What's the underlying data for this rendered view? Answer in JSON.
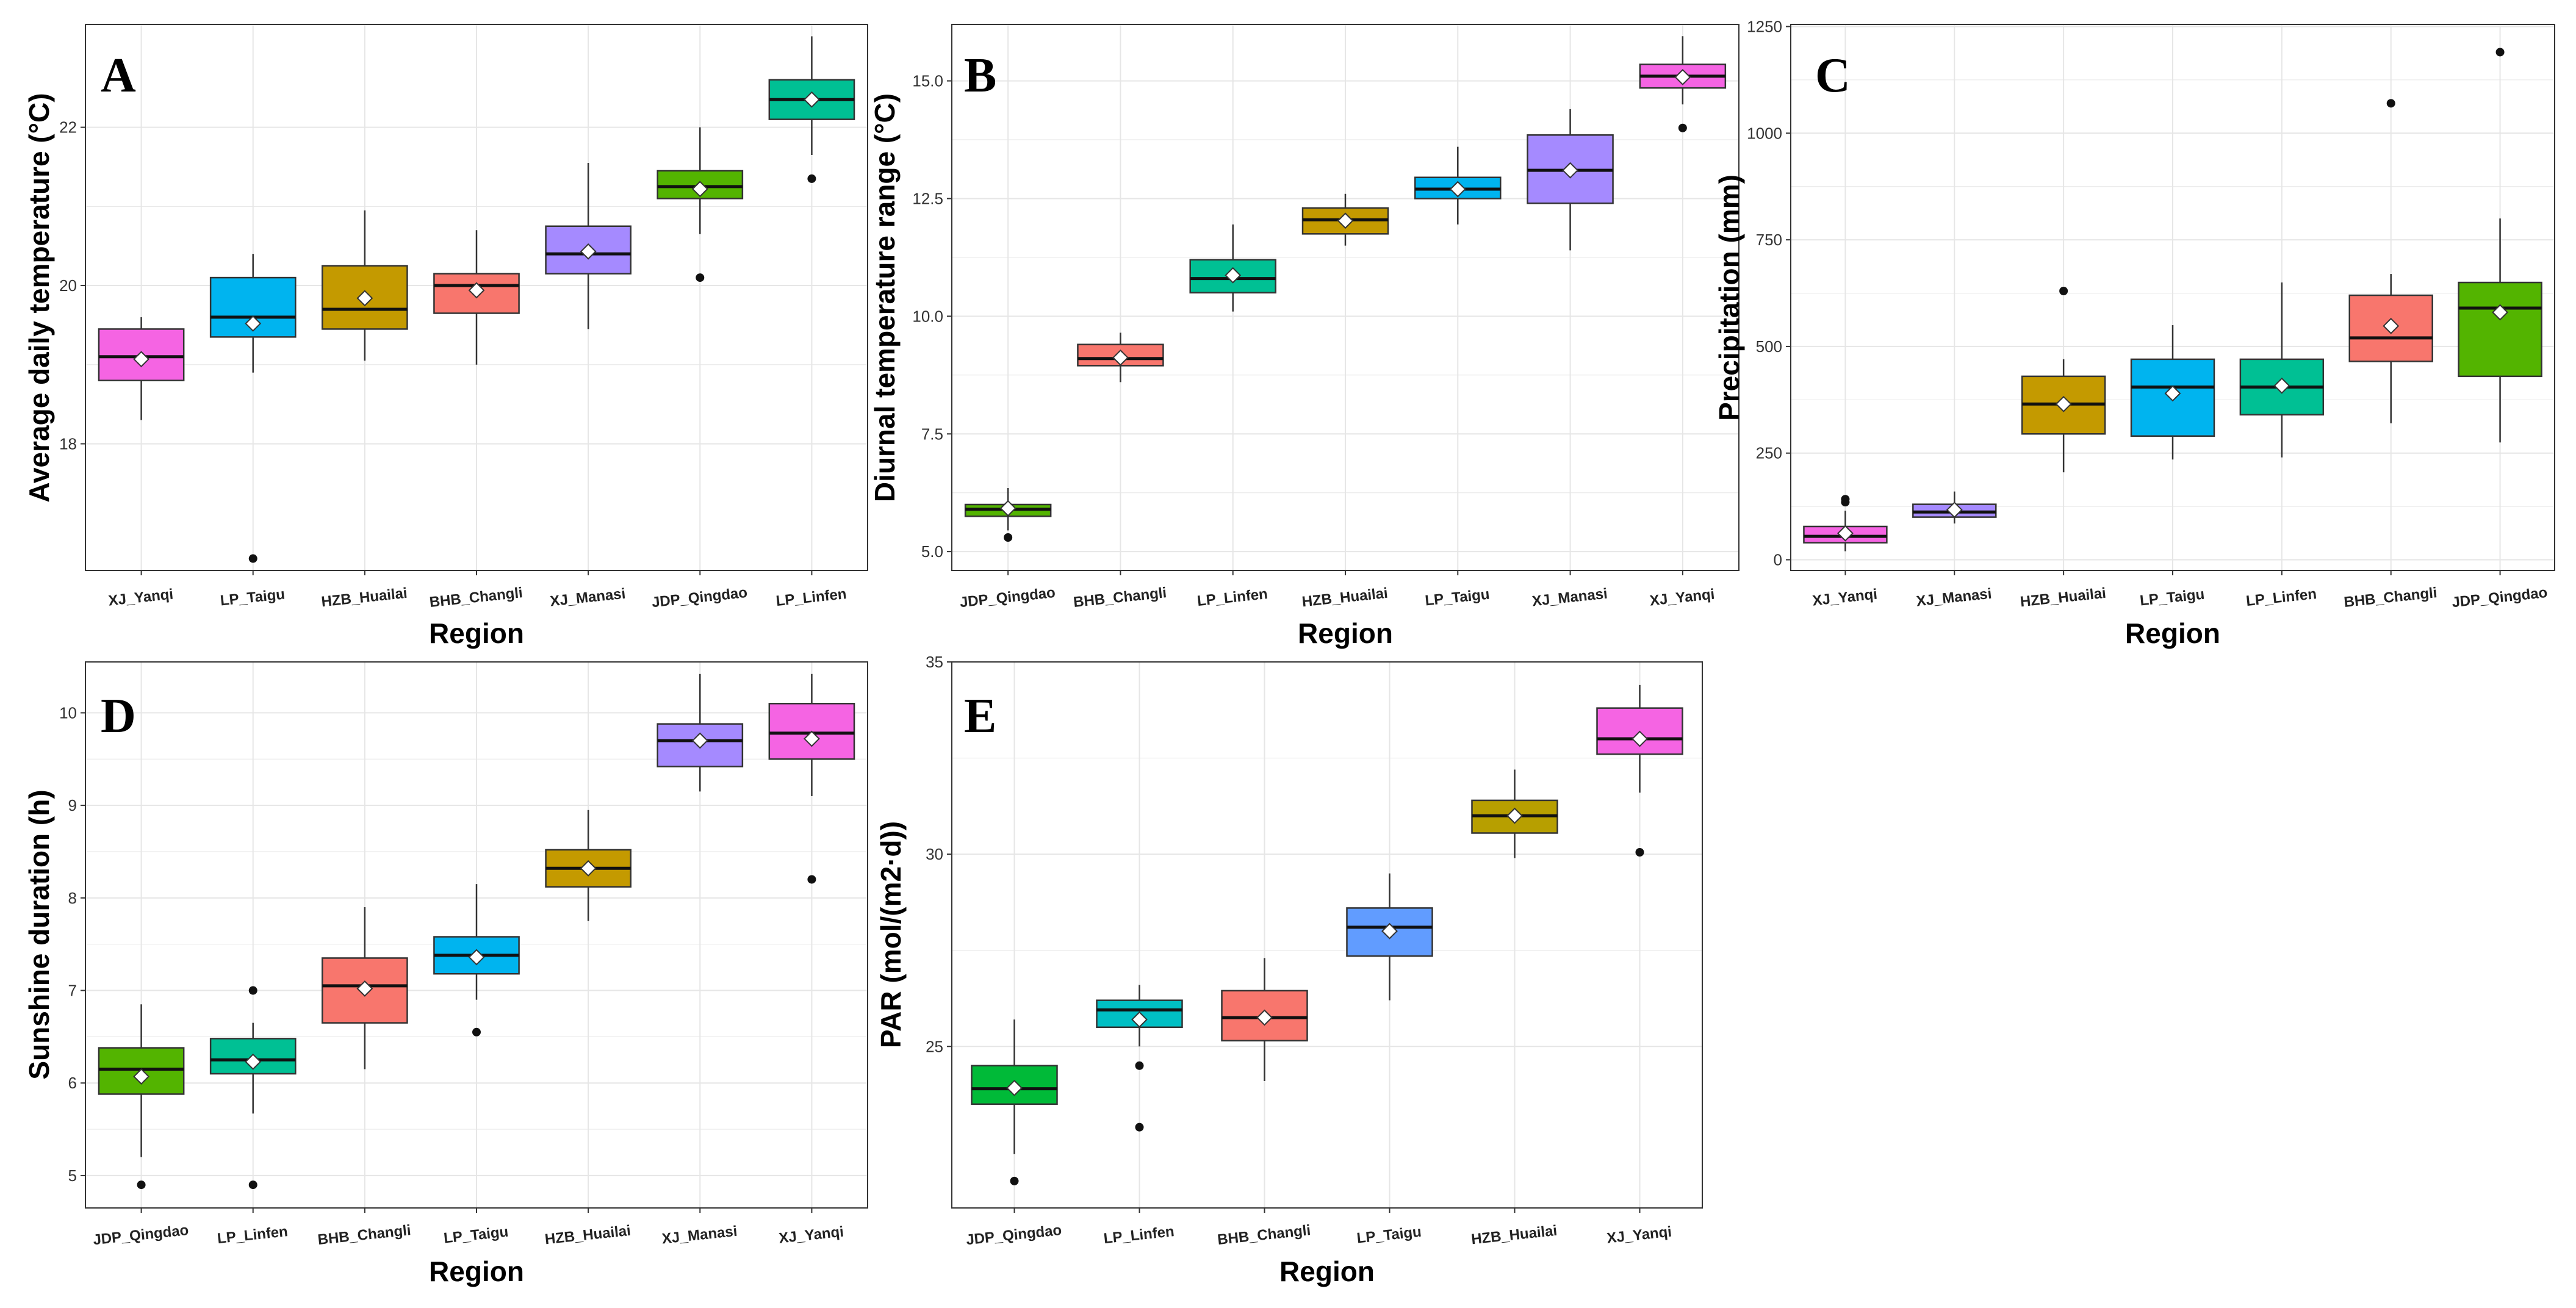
{
  "figure": {
    "background": "#ffffff",
    "grid_color": "#e6e6e6",
    "box_outline": "#333333",
    "mean_marker": "#ffffff"
  },
  "chart_data": [
    {
      "type": "boxplot",
      "panel_label": "A",
      "xlabel": "Region",
      "ylabel": "Average daily temperature (°C)",
      "ylim": [
        16.4,
        23.3
      ],
      "y_ticks": [
        18,
        20,
        22
      ],
      "y_tick_labels": [
        "18",
        "20",
        "22"
      ],
      "categories": [
        "XJ_Yanqi",
        "LP_Taigu",
        "HZB_Huailai",
        "BHB_Changli",
        "XJ_Manasi",
        "JDP_Qingdao",
        "LP_Linfen"
      ],
      "boxes": [
        {
          "color": "#f564e3",
          "whisker_low": 18.3,
          "q1": 18.8,
          "median": 19.1,
          "q3": 19.45,
          "whisker_high": 19.6,
          "mean": 19.07,
          "outliers": []
        },
        {
          "color": "#00b4ef",
          "whisker_low": 18.9,
          "q1": 19.35,
          "median": 19.6,
          "q3": 20.1,
          "whisker_high": 20.4,
          "mean": 19.52,
          "outliers": [
            16.55
          ]
        },
        {
          "color": "#c49a00",
          "whisker_low": 19.05,
          "q1": 19.45,
          "median": 19.7,
          "q3": 20.25,
          "whisker_high": 20.95,
          "mean": 19.84,
          "outliers": []
        },
        {
          "color": "#f8766d",
          "whisker_low": 19.0,
          "q1": 19.65,
          "median": 20.0,
          "q3": 20.15,
          "whisker_high": 20.7,
          "mean": 19.94,
          "outliers": []
        },
        {
          "color": "#a58aff",
          "whisker_low": 19.45,
          "q1": 20.15,
          "median": 20.4,
          "q3": 20.75,
          "whisker_high": 21.55,
          "mean": 20.43,
          "outliers": []
        },
        {
          "color": "#53b400",
          "whisker_low": 20.65,
          "q1": 21.1,
          "median": 21.25,
          "q3": 21.45,
          "whisker_high": 22.0,
          "mean": 21.22,
          "outliers": [
            20.1
          ]
        },
        {
          "color": "#00c094",
          "whisker_low": 21.65,
          "q1": 22.1,
          "median": 22.35,
          "q3": 22.6,
          "whisker_high": 23.15,
          "mean": 22.35,
          "outliers": [
            21.35
          ]
        }
      ]
    },
    {
      "type": "boxplot",
      "panel_label": "B",
      "xlabel": "Region",
      "ylabel": "Diurnal temperature range (°C)",
      "ylim": [
        4.6,
        16.2
      ],
      "y_ticks": [
        5.0,
        7.5,
        10.0,
        12.5,
        15.0
      ],
      "y_tick_labels": [
        "5.0",
        "7.5",
        "10.0",
        "12.5",
        "15.0"
      ],
      "categories": [
        "JDP_Qingdao",
        "BHB_Changli",
        "LP_Linfen",
        "HZB_Huailai",
        "LP_Taigu",
        "XJ_Manasi",
        "XJ_Yanqi"
      ],
      "boxes": [
        {
          "color": "#53b400",
          "whisker_low": 5.45,
          "q1": 5.75,
          "median": 5.9,
          "q3": 6.0,
          "whisker_high": 6.35,
          "mean": 5.92,
          "outliers": [
            5.3
          ]
        },
        {
          "color": "#f8766d",
          "whisker_low": 8.6,
          "q1": 8.95,
          "median": 9.1,
          "q3": 9.4,
          "whisker_high": 9.65,
          "mean": 9.12,
          "outliers": []
        },
        {
          "color": "#00c094",
          "whisker_low": 10.1,
          "q1": 10.5,
          "median": 10.8,
          "q3": 11.2,
          "whisker_high": 11.95,
          "mean": 10.87,
          "outliers": []
        },
        {
          "color": "#c49a00",
          "whisker_low": 11.5,
          "q1": 11.75,
          "median": 12.05,
          "q3": 12.3,
          "whisker_high": 12.6,
          "mean": 12.03,
          "outliers": []
        },
        {
          "color": "#00b4ef",
          "whisker_low": 11.95,
          "q1": 12.5,
          "median": 12.7,
          "q3": 12.95,
          "whisker_high": 13.6,
          "mean": 12.7,
          "outliers": []
        },
        {
          "color": "#a58aff",
          "whisker_low": 11.4,
          "q1": 12.4,
          "median": 13.1,
          "q3": 13.85,
          "whisker_high": 14.4,
          "mean": 13.1,
          "outliers": []
        },
        {
          "color": "#f564e3",
          "whisker_low": 14.5,
          "q1": 14.85,
          "median": 15.1,
          "q3": 15.35,
          "whisker_high": 15.95,
          "mean": 15.08,
          "outliers": [
            14.0
          ]
        }
      ]
    },
    {
      "type": "boxplot",
      "panel_label": "C",
      "xlabel": "Region",
      "ylabel": "Precipitation (mm)",
      "ylim": [
        -25,
        1255
      ],
      "y_ticks": [
        0,
        250,
        500,
        750,
        1000,
        1250
      ],
      "y_tick_labels": [
        "0",
        "250",
        "500",
        "750",
        "1000",
        "1250"
      ],
      "categories": [
        "XJ_Yanqi",
        "XJ_Manasi",
        "HZB_Huailai",
        "LP_Taigu",
        "LP_Linfen",
        "BHB_Changli",
        "JDP_Qingdao"
      ],
      "boxes": [
        {
          "color": "#f564e3",
          "whisker_low": 20,
          "q1": 40,
          "median": 55,
          "q3": 78,
          "whisker_high": 115,
          "mean": 62,
          "outliers": [
            135,
            142
          ]
        },
        {
          "color": "#a58aff",
          "whisker_low": 85,
          "q1": 100,
          "median": 112,
          "q3": 130,
          "whisker_high": 160,
          "mean": 117,
          "outliers": []
        },
        {
          "color": "#c49a00",
          "whisker_low": 205,
          "q1": 295,
          "median": 365,
          "q3": 430,
          "whisker_high": 470,
          "mean": 365,
          "outliers": [
            630
          ]
        },
        {
          "color": "#00b4ef",
          "whisker_low": 235,
          "q1": 290,
          "median": 405,
          "q3": 470,
          "whisker_high": 550,
          "mean": 390,
          "outliers": []
        },
        {
          "color": "#00c094",
          "whisker_low": 240,
          "q1": 340,
          "median": 405,
          "q3": 470,
          "whisker_high": 650,
          "mean": 408,
          "outliers": []
        },
        {
          "color": "#f8766d",
          "whisker_low": 320,
          "q1": 465,
          "median": 520,
          "q3": 620,
          "whisker_high": 670,
          "mean": 548,
          "outliers": [
            1070
          ]
        },
        {
          "color": "#53b400",
          "whisker_low": 275,
          "q1": 430,
          "median": 590,
          "q3": 650,
          "whisker_high": 800,
          "mean": 580,
          "outliers": [
            1190
          ]
        }
      ]
    },
    {
      "type": "boxplot",
      "panel_label": "D",
      "xlabel": "Region",
      "ylabel": "Sunshine duration (h)",
      "ylim": [
        4.65,
        10.55
      ],
      "y_ticks": [
        5,
        6,
        7,
        8,
        9,
        10
      ],
      "y_tick_labels": [
        "5",
        "6",
        "7",
        "8",
        "9",
        "10"
      ],
      "categories": [
        "JDP_Qingdao",
        "LP_Linfen",
        "BHB_Changli",
        "LP_Taigu",
        "HZB_Huailai",
        "XJ_Manasi",
        "XJ_Yanqi"
      ],
      "boxes": [
        {
          "color": "#53b400",
          "whisker_low": 5.2,
          "q1": 5.88,
          "median": 6.15,
          "q3": 6.38,
          "whisker_high": 6.85,
          "mean": 6.07,
          "outliers": [
            4.9
          ]
        },
        {
          "color": "#00c094",
          "whisker_low": 5.67,
          "q1": 6.1,
          "median": 6.25,
          "q3": 6.48,
          "whisker_high": 6.65,
          "mean": 6.23,
          "outliers": [
            7.0,
            4.9
          ]
        },
        {
          "color": "#f8766d",
          "whisker_low": 6.15,
          "q1": 6.65,
          "median": 7.05,
          "q3": 7.35,
          "whisker_high": 7.9,
          "mean": 7.02,
          "outliers": []
        },
        {
          "color": "#00b4ef",
          "whisker_low": 6.9,
          "q1": 7.18,
          "median": 7.38,
          "q3": 7.58,
          "whisker_high": 8.15,
          "mean": 7.36,
          "outliers": [
            6.55
          ]
        },
        {
          "color": "#c49a00",
          "whisker_low": 7.75,
          "q1": 8.12,
          "median": 8.32,
          "q3": 8.52,
          "whisker_high": 8.95,
          "mean": 8.32,
          "outliers": []
        },
        {
          "color": "#a58aff",
          "whisker_low": 9.15,
          "q1": 9.42,
          "median": 9.7,
          "q3": 9.88,
          "whisker_high": 10.42,
          "mean": 9.7,
          "outliers": []
        },
        {
          "color": "#f564e3",
          "whisker_low": 9.1,
          "q1": 9.5,
          "median": 9.78,
          "q3": 10.1,
          "whisker_high": 10.42,
          "mean": 9.72,
          "outliers": [
            8.2
          ]
        }
      ]
    },
    {
      "type": "boxplot",
      "panel_label": "E",
      "xlabel": "Region",
      "ylabel": "PAR (mol/(m2·d))",
      "ylim": [
        20.8,
        35.0
      ],
      "y_ticks": [
        25,
        30,
        35
      ],
      "y_tick_labels": [
        "25",
        "30",
        "35"
      ],
      "categories": [
        "JDP_Qingdao",
        "LP_Linfen",
        "BHB_Changli",
        "LP_Taigu",
        "HZB_Huailai",
        "XJ_Yanqi"
      ],
      "boxes": [
        {
          "color": "#00ba38",
          "whisker_low": 22.2,
          "q1": 23.5,
          "median": 23.9,
          "q3": 24.5,
          "whisker_high": 25.7,
          "mean": 23.92,
          "outliers": [
            21.5
          ]
        },
        {
          "color": "#00bfc4",
          "whisker_low": 25.0,
          "q1": 25.5,
          "median": 25.95,
          "q3": 26.2,
          "whisker_high": 26.6,
          "mean": 25.7,
          "outliers": [
            24.5,
            22.9
          ]
        },
        {
          "color": "#f8766d",
          "whisker_low": 24.1,
          "q1": 25.15,
          "median": 25.75,
          "q3": 26.45,
          "whisker_high": 27.3,
          "mean": 25.75,
          "outliers": []
        },
        {
          "color": "#619cff",
          "whisker_low": 26.2,
          "q1": 27.35,
          "median": 28.1,
          "q3": 28.6,
          "whisker_high": 29.5,
          "mean": 28.0,
          "outliers": []
        },
        {
          "color": "#b79f00",
          "whisker_low": 29.9,
          "q1": 30.55,
          "median": 31.0,
          "q3": 31.4,
          "whisker_high": 32.2,
          "mean": 31.0,
          "outliers": []
        },
        {
          "color": "#f564e3",
          "whisker_low": 31.6,
          "q1": 32.6,
          "median": 33.0,
          "q3": 33.8,
          "whisker_high": 34.4,
          "mean": 33.0,
          "outliers": [
            30.05
          ]
        }
      ]
    }
  ]
}
